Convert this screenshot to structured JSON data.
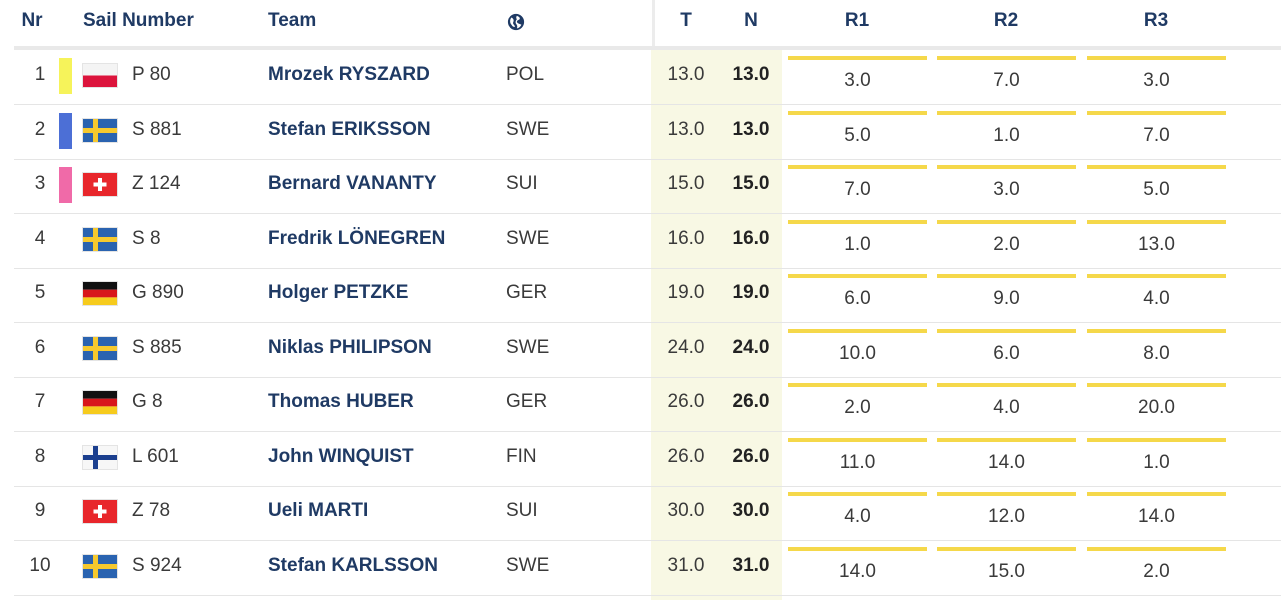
{
  "columns": {
    "nr": "Nr",
    "sail_number": "Sail Number",
    "team": "Team",
    "nation_icon": "globe-icon",
    "total": "T",
    "net": "N",
    "r1": "R1",
    "r2": "R2",
    "r3": "R3"
  },
  "rows": [
    {
      "nr": "1",
      "marker": "#f6f35a",
      "flag": "pol",
      "sail": "P 80",
      "team": "Mrozek RYSZARD",
      "nat": "POL",
      "t": "13.0",
      "n": "13.0",
      "r1": "3.0",
      "r2": "7.0",
      "r3": "3.0"
    },
    {
      "nr": "2",
      "marker": "#4c6fd6",
      "flag": "swe",
      "sail": "S 881",
      "team": "Stefan ERIKSSON",
      "nat": "SWE",
      "t": "13.0",
      "n": "13.0",
      "r1": "5.0",
      "r2": "1.0",
      "r3": "7.0"
    },
    {
      "nr": "3",
      "marker": "#f06aa8",
      "flag": "sui",
      "sail": "Z 124",
      "team": "Bernard VANANTY",
      "nat": "SUI",
      "t": "15.0",
      "n": "15.0",
      "r1": "7.0",
      "r2": "3.0",
      "r3": "5.0"
    },
    {
      "nr": "4",
      "marker": "",
      "flag": "swe",
      "sail": "S 8",
      "team": "Fredrik LÖNEGREN",
      "nat": "SWE",
      "t": "16.0",
      "n": "16.0",
      "r1": "1.0",
      "r2": "2.0",
      "r3": "13.0"
    },
    {
      "nr": "5",
      "marker": "",
      "flag": "ger",
      "sail": "G 890",
      "team": "Holger PETZKE",
      "nat": "GER",
      "t": "19.0",
      "n": "19.0",
      "r1": "6.0",
      "r2": "9.0",
      "r3": "4.0"
    },
    {
      "nr": "6",
      "marker": "",
      "flag": "swe",
      "sail": "S 885",
      "team": "Niklas PHILIPSON",
      "nat": "SWE",
      "t": "24.0",
      "n": "24.0",
      "r1": "10.0",
      "r2": "6.0",
      "r3": "8.0"
    },
    {
      "nr": "7",
      "marker": "",
      "flag": "ger",
      "sail": "G 8",
      "team": "Thomas HUBER",
      "nat": "GER",
      "t": "26.0",
      "n": "26.0",
      "r1": "2.0",
      "r2": "4.0",
      "r3": "20.0"
    },
    {
      "nr": "8",
      "marker": "",
      "flag": "fin",
      "sail": "L 601",
      "team": "John WINQUIST",
      "nat": "FIN",
      "t": "26.0",
      "n": "26.0",
      "r1": "11.0",
      "r2": "14.0",
      "r3": "1.0"
    },
    {
      "nr": "9",
      "marker": "",
      "flag": "sui",
      "sail": "Z 78",
      "team": "Ueli MARTI",
      "nat": "SUI",
      "t": "30.0",
      "n": "30.0",
      "r1": "4.0",
      "r2": "12.0",
      "r3": "14.0"
    },
    {
      "nr": "10",
      "marker": "",
      "flag": "swe",
      "sail": "S 924",
      "team": "Stefan KARLSSON",
      "nat": "SWE",
      "t": "31.0",
      "n": "31.0",
      "r1": "14.0",
      "r2": "15.0",
      "r3": "2.0"
    }
  ],
  "colors": {
    "header_text": "#1f3a64",
    "team_text": "#1f3a64",
    "race_bar": "#f5d84a",
    "total_column_bg": "#f8f8e4"
  }
}
